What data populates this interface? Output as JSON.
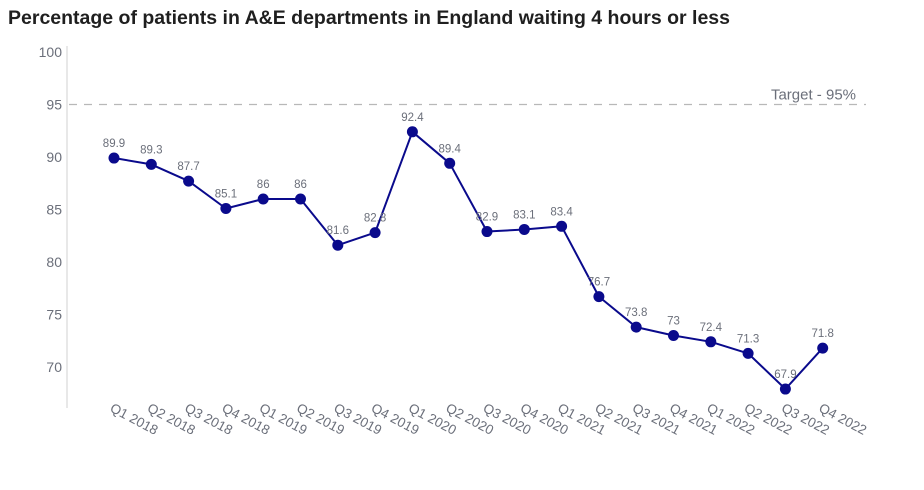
{
  "chart_data": {
    "type": "line",
    "title": "Percentage of patients in A&E departments in England waiting 4 hours or less",
    "categories": [
      "Q1 2018",
      "Q2 2018",
      "Q3 2018",
      "Q4 2018",
      "Q1 2019",
      "Q2 2019",
      "Q3 2019",
      "Q4 2019",
      "Q1 2020",
      "Q2 2020",
      "Q3 2020",
      "Q4 2020",
      "Q1 2021",
      "Q2 2021",
      "Q3 2021",
      "Q4 2021",
      "Q1 2022",
      "Q2 2022",
      "Q3 2022",
      "Q4 2022"
    ],
    "series": [
      {
        "values": [
          89.9,
          89.3,
          87.7,
          85.1,
          86,
          86,
          81.6,
          82.8,
          92.4,
          89.4,
          82.9,
          83.1,
          83.4,
          76.7,
          73.8,
          73,
          72.4,
          71.3,
          67.9,
          71.8
        ],
        "data_labels": [
          "89.9",
          "89.3",
          "87.7",
          "85.1",
          "86",
          "86",
          "81.6",
          "82.8",
          "92.4",
          "89.4",
          "82.9",
          "83.1",
          "83.4",
          "76.7",
          "73.8",
          "73",
          "72.4",
          "71.3",
          "67.9",
          "71.8"
        ]
      }
    ],
    "y_ticks": [
      "100",
      "95",
      "90",
      "85",
      "80",
      "75",
      "70"
    ],
    "y_tick_values": [
      100,
      95,
      90,
      85,
      80,
      75,
      70
    ],
    "ylim": [
      66,
      100
    ],
    "xlabel": "",
    "ylabel": "",
    "reference_line": {
      "value": 95,
      "label": "Target - 95%",
      "style": "dashed"
    },
    "grid": false,
    "line_color": "#0a0a8c",
    "marker_color": "#0a0a8c",
    "reference_color": "#b8b8b8",
    "text_color": "#6b6f7a"
  }
}
